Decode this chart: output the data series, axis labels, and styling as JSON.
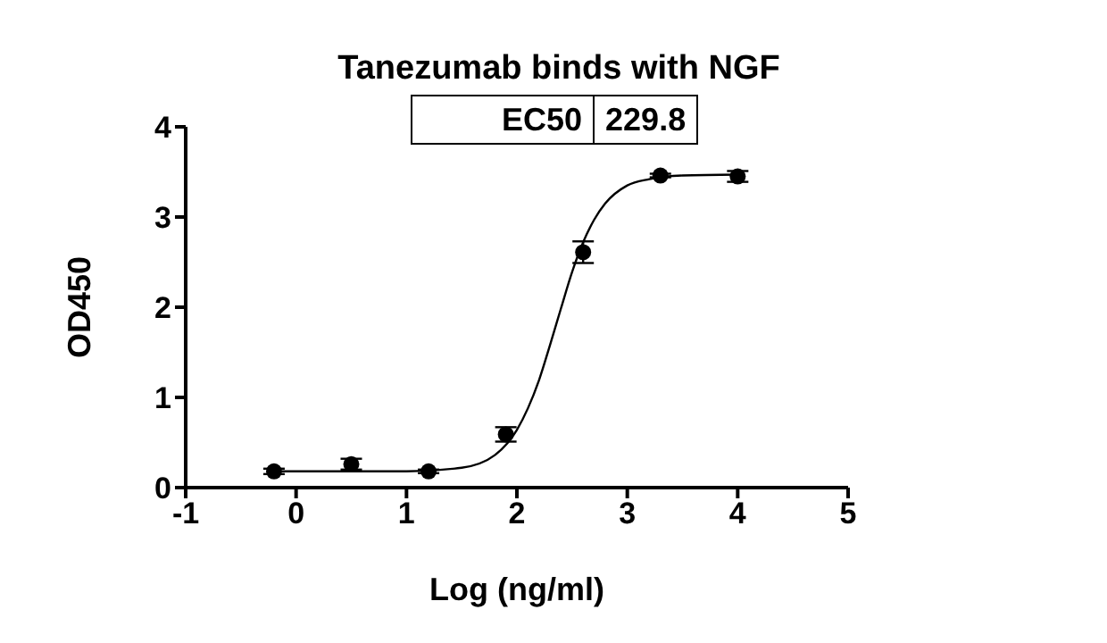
{
  "chart_data": {
    "type": "scatter",
    "title": "Tanezumab binds with NGF",
    "xlabel": "Log (ng/ml)",
    "ylabel": "OD450",
    "xlim": [
      -1,
      5
    ],
    "xticks": [
      -1,
      0,
      1,
      2,
      3,
      4,
      5
    ],
    "ylim": [
      0,
      4
    ],
    "yticks": [
      0,
      1,
      2,
      3,
      4
    ],
    "grid": false,
    "legend": false,
    "annotations": [
      "EC50",
      "229.8"
    ],
    "series": [
      {
        "color": "#000000",
        "marker": "circle",
        "x": [
          -0.2,
          0.5,
          1.2,
          1.9,
          2.6,
          3.3,
          4.0
        ],
        "values": [
          0.18,
          0.26,
          0.18,
          0.59,
          2.61,
          3.46,
          3.45
        ],
        "errors": [
          0.03,
          0.06,
          0.02,
          0.08,
          0.12,
          0.02,
          0.06
        ]
      },
      {
        "type": "line",
        "color": "#000000",
        "marker": "none",
        "line_style": "solid",
        "x": [
          -0.2,
          1.0,
          1.5,
          1.8,
          2.0,
          2.1,
          2.2,
          2.3,
          2.4,
          2.5,
          2.6,
          2.7,
          2.8,
          3.0,
          3.2,
          3.5,
          4.0
        ],
        "values": [
          0.18,
          0.18,
          0.22,
          0.36,
          0.64,
          0.88,
          1.19,
          1.58,
          1.99,
          2.39,
          2.72,
          2.97,
          3.15,
          3.35,
          3.42,
          3.46,
          3.47
        ]
      }
    ]
  }
}
